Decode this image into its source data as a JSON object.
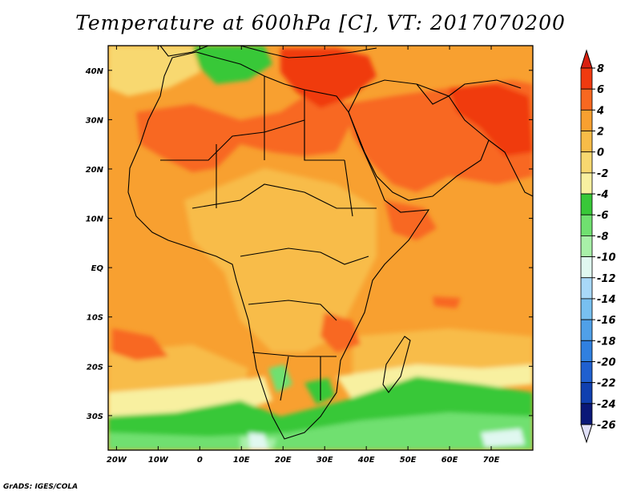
{
  "title": "Temperature at 600hPa [C], VT: 2017070200",
  "credit": "GrADS: IGES/COLA",
  "map": {
    "lon_range": [
      -22,
      80
    ],
    "lat_range": [
      -37,
      45
    ],
    "x_ticks": [
      "20W",
      "10W",
      "0",
      "10E",
      "20E",
      "30E",
      "40E",
      "50E",
      "60E",
      "70E"
    ],
    "x_tick_values": [
      -20,
      -10,
      0,
      10,
      20,
      30,
      40,
      50,
      60,
      70
    ],
    "y_ticks": [
      "40N",
      "30N",
      "20N",
      "10N",
      "EQ",
      "10S",
      "20S",
      "30S"
    ],
    "y_tick_values": [
      40,
      30,
      20,
      10,
      0,
      -10,
      -20,
      -30
    ],
    "background_color": "#f8a030"
  },
  "colorbar": {
    "labels": [
      "8",
      "6",
      "4",
      "2",
      "0",
      "-2",
      "-4",
      "-6",
      "-8",
      "-10",
      "-12",
      "-14",
      "-16",
      "-18",
      "-20",
      "-22",
      "-24",
      "-26"
    ],
    "colors": [
      "#f03a10",
      "#f86820",
      "#f8a030",
      "#f8bc48",
      "#f8d870",
      "#f8f0a0",
      "#38c838",
      "#70e070",
      "#a8f0a8",
      "#e0f8f0",
      "#a8d8f8",
      "#78c0f0",
      "#50a0e8",
      "#3080e0",
      "#2060d0",
      "#1040b0",
      "#0a1878"
    ],
    "top_arrow_color": "#d82010",
    "bottom_arrow_color": "#e0e0f8"
  }
}
